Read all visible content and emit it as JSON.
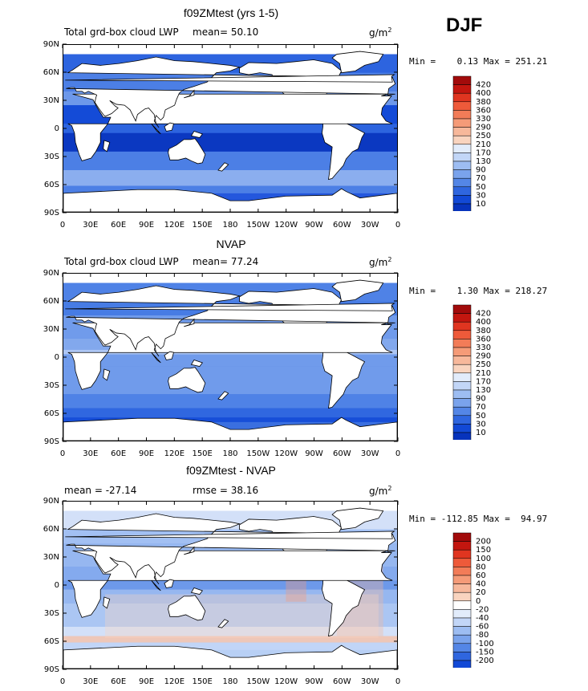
{
  "season": "DJF",
  "units": "g/m",
  "units_sup": "2",
  "colors": {
    "positive": [
      "#fcefe6",
      "#f9d4bf",
      "#f7b89b",
      "#f59b78",
      "#f27c58",
      "#ee5a3a",
      "#e03520",
      "#c3160f",
      "#a20b0b"
    ],
    "negative": [
      "#e2ecfb",
      "#c2d6f7",
      "#9dbdf2",
      "#7aa3ec",
      "#5486e6",
      "#2f66df",
      "#1249d6",
      "#0733bc",
      "#021f98",
      "#000a5c"
    ],
    "land": "#ffffff",
    "coast": "#000000"
  },
  "panels": [
    {
      "title": "f09ZMtest (yrs 1-5)",
      "left_text": "Total grd-box cloud LWP",
      "mean_text": "mean=  50.10",
      "minmax": "Min =    0.13 Max = 251.21",
      "colorbar": [
        "420",
        "400",
        "380",
        "360",
        "330",
        "290",
        "250",
        "210",
        "170",
        "130",
        "90",
        "70",
        "50",
        "30",
        "10"
      ],
      "kind": "field"
    },
    {
      "title": "NVAP",
      "left_text": "Total grd-box cloud LWP",
      "mean_text": "mean=  77.24",
      "minmax": "Min =    1.30 Max = 218.27",
      "colorbar": [
        "420",
        "400",
        "380",
        "360",
        "330",
        "290",
        "250",
        "210",
        "170",
        "130",
        "90",
        "70",
        "50",
        "30",
        "10"
      ],
      "kind": "field-pixel"
    },
    {
      "title": "f09ZMtest - NVAP",
      "left_text": "mean = -27.14",
      "mean_text": "rmse =  38.16",
      "minmax": "Min = -112.85 Max =  94.97",
      "colorbar": [
        "200",
        "150",
        "100",
        "80",
        "60",
        "40",
        "20",
        "0",
        "-20",
        "-40",
        "-60",
        "-80",
        "-100",
        "-150",
        "-200"
      ],
      "kind": "diff"
    }
  ],
  "lat_ticks": [
    "90N",
    "60N",
    "30N",
    "0",
    "30S",
    "60S",
    "90S"
  ],
  "lon_ticks": [
    "0",
    "30E",
    "60E",
    "90E",
    "120E",
    "150E",
    "180",
    "150W",
    "120W",
    "90W",
    "60W",
    "30W",
    "0"
  ]
}
